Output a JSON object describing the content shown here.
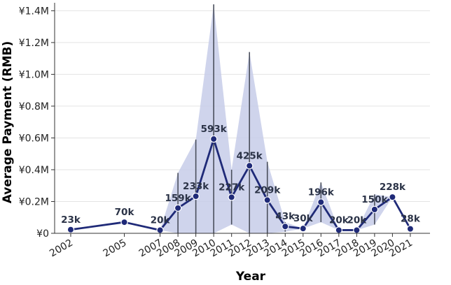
{
  "chart_data": {
    "type": "line",
    "title": "",
    "xlabel": "Year",
    "ylabel": "Average Payment (RMB)",
    "ylim": [
      0,
      1450000
    ],
    "y_ticks": [
      {
        "value": 0,
        "label": "¥0"
      },
      {
        "value": 200000,
        "label": "¥0.2M"
      },
      {
        "value": 400000,
        "label": "¥0.4M"
      },
      {
        "value": 600000,
        "label": "¥0.6M"
      },
      {
        "value": 800000,
        "label": "¥0.8M"
      },
      {
        "value": 1000000,
        "label": "¥1.0M"
      },
      {
        "value": 1200000,
        "label": "¥1.2M"
      },
      {
        "value": 1400000,
        "label": "¥1.4M"
      }
    ],
    "x_ticks": [
      "2002",
      "2005",
      "2007",
      "2008",
      "2009",
      "2010",
      "2011",
      "2012",
      "2013",
      "2014",
      "2015",
      "2016",
      "2017",
      "2018",
      "2019",
      "2020",
      "2021"
    ],
    "grid": "horizontal",
    "line_color": "#1f2a78",
    "band_color": "#c7cde9",
    "errorbar_color": "#4a4f5c",
    "points": [
      {
        "year": "2002",
        "value": 23000,
        "label": "23k",
        "lo": null,
        "hi": null
      },
      {
        "year": "2005",
        "value": 70000,
        "label": "70k",
        "lo": null,
        "hi": null
      },
      {
        "year": "2007",
        "value": 20000,
        "label": "20k",
        "lo": null,
        "hi": null
      },
      {
        "year": "2008",
        "value": 159000,
        "label": "159k",
        "lo": 0,
        "hi": 380000
      },
      {
        "year": "2009",
        "value": 233000,
        "label": "233k",
        "lo": 0,
        "hi": 590000
      },
      {
        "year": "2010",
        "value": 593000,
        "label": "593k",
        "lo": 0,
        "hi": 1440000
      },
      {
        "year": "2011",
        "value": 227000,
        "label": "227k",
        "lo": 55000,
        "hi": 400000
      },
      {
        "year": "2012",
        "value": 425000,
        "label": "425k",
        "lo": 0,
        "hi": 1140000
      },
      {
        "year": "2013",
        "value": 209000,
        "label": "209k",
        "lo": 0,
        "hi": 450000
      },
      {
        "year": "2014",
        "value": 43000,
        "label": "43k",
        "lo": 10000,
        "hi": 70000
      },
      {
        "year": "2015",
        "value": 30000,
        "label": "30k",
        "lo": null,
        "hi": null
      },
      {
        "year": "2016",
        "value": 196000,
        "label": "196k",
        "lo": 70000,
        "hi": 320000
      },
      {
        "year": "2017",
        "value": 20000,
        "label": "20k",
        "lo": null,
        "hi": null
      },
      {
        "year": "2018",
        "value": 20000,
        "label": "20k",
        "lo": null,
        "hi": null
      },
      {
        "year": "2019",
        "value": 150000,
        "label": "150k",
        "lo": 55000,
        "hi": 245000
      },
      {
        "year": "2020",
        "value": 228000,
        "label": "228k",
        "lo": null,
        "hi": null
      },
      {
        "year": "2021",
        "value": 28000,
        "label": "28k",
        "lo": null,
        "hi": null
      }
    ]
  }
}
